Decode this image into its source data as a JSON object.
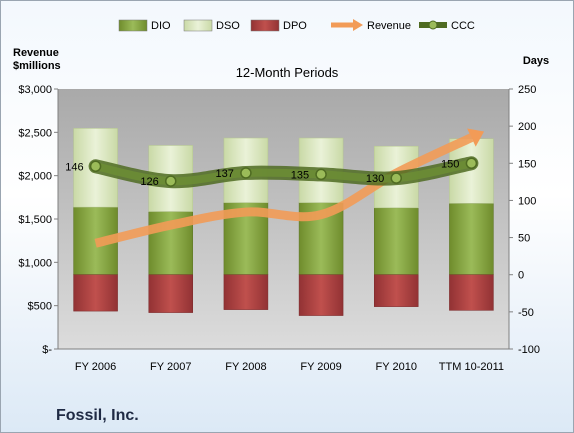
{
  "company": "Fossil, Inc.",
  "chart_data": {
    "type": "bar",
    "title": "12-Month Periods",
    "left_axis_label": "Revenue\n$millions",
    "right_axis_label": "Days",
    "categories": [
      "FY 2006",
      "FY 2007",
      "FY 2008",
      "FY 2009",
      "FY 2010",
      "TTM 10-2011"
    ],
    "left_ticks": [
      "$-",
      "$500",
      "$1,000",
      "$1,500",
      "$2,000",
      "$2,500",
      "$3,000"
    ],
    "right_ticks": [
      "-100",
      "-50",
      "0",
      "50",
      "100",
      "150",
      "200",
      "250"
    ],
    "ylim_left": [
      0,
      3000
    ],
    "ylim_right": [
      -100,
      250
    ],
    "series": [
      {
        "name": "DIO",
        "color": "#86a33e",
        "values": [
          91,
          85,
          97,
          97,
          90,
          96
        ]
      },
      {
        "name": "DSO",
        "color": "#d7e4bd",
        "values": [
          106,
          89,
          87,
          87,
          83,
          87
        ]
      },
      {
        "name": "DPO",
        "color": "#b8484a",
        "values": [
          -49,
          -51,
          -47,
          -55,
          -43,
          -48
        ]
      },
      {
        "name": "Revenue",
        "color": "#f29b57",
        "values": [
          1220,
          1430,
          1580,
          1550,
          2030,
          2440
        ]
      },
      {
        "name": "CCC",
        "color": "#5a7a2e",
        "values": [
          146,
          126,
          137,
          135,
          130,
          150
        ]
      }
    ],
    "ccc_labels": [
      "146",
      "126",
      "137",
      "135",
      "130",
      "150"
    ],
    "legend_position": "top",
    "grid": false
  }
}
